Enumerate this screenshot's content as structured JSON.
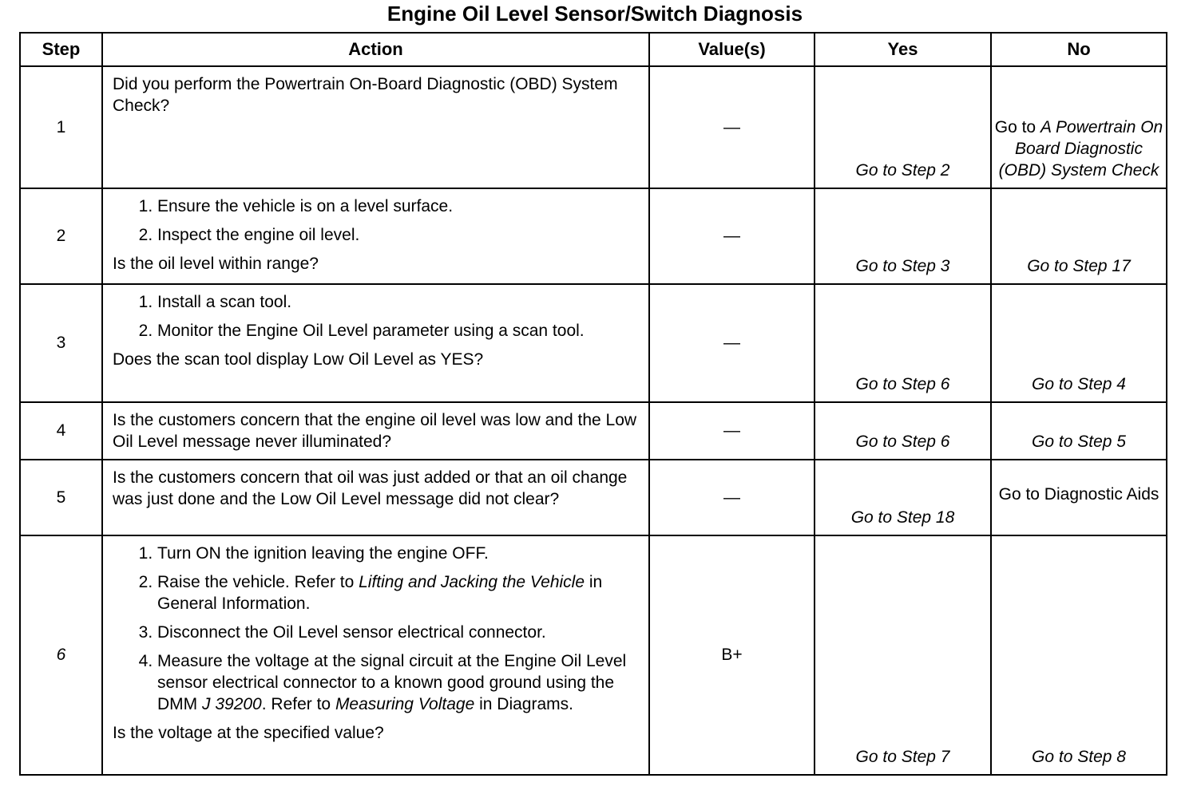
{
  "title": "Engine Oil Level Sensor/Switch Diagnosis",
  "headers": [
    "Step",
    "Action",
    "Value(s)",
    "Yes",
    "No"
  ],
  "rows": [
    {
      "step": "1",
      "step_italic": false,
      "intro": [
        [
          {
            "t": "Did you perform the Powertrain On-Board Diagnostic (OBD) System Check?"
          }
        ]
      ],
      "items": [],
      "question": [],
      "value": "—",
      "yes": "Go to Step 2",
      "no": [
        {
          "t": "Go to ",
          "i": false
        },
        {
          "t": "A Powertrain On Board Diagnostic (OBD) System Check",
          "i": true
        }
      ],
      "no_valign": "bottom"
    },
    {
      "step": "2",
      "step_italic": false,
      "intro": [],
      "items": [
        [
          {
            "t": "Ensure the vehicle is on a level surface."
          }
        ],
        [
          {
            "t": "Inspect the engine oil level."
          }
        ]
      ],
      "question": [
        {
          "t": "Is the oil level within range?"
        }
      ],
      "value": "—",
      "yes": "Go to Step 3",
      "no": [
        {
          "t": "Go to Step 17",
          "i": true
        }
      ],
      "no_valign": "bottom"
    },
    {
      "step": "3",
      "step_italic": false,
      "intro": [],
      "items": [
        [
          {
            "t": "Install a scan tool."
          }
        ],
        [
          {
            "t": "Monitor the Engine Oil Level parameter using a scan tool."
          }
        ]
      ],
      "question": [
        {
          "t": "Does the scan tool display Low Oil Level as YES?"
        }
      ],
      "value": "—",
      "yes": "Go to Step 6",
      "no": [
        {
          "t": "Go to Step 4",
          "i": true
        }
      ],
      "no_valign": "bottom"
    },
    {
      "step": "4",
      "step_italic": false,
      "intro": [
        [
          {
            "t": "Is the customers concern that the engine oil level was low and the Low Oil Level message never illuminated?"
          }
        ]
      ],
      "items": [],
      "question": [],
      "value": "—",
      "yes": "Go to Step 6",
      "no": [
        {
          "t": "Go to Step 5",
          "i": true
        }
      ],
      "no_valign": "bottom"
    },
    {
      "step": "5",
      "step_italic": false,
      "intro": [
        [
          {
            "t": "Is the customers concern that oil was just added or that an oil change was just done and the Low Oil Level message did not clear?"
          }
        ]
      ],
      "items": [],
      "question": [],
      "value": "—",
      "yes": "Go to Step 18",
      "no": [
        {
          "t": "Go to Diagnostic Aids",
          "i": false
        }
      ],
      "no_valign": "middle"
    },
    {
      "step": "6",
      "step_italic": true,
      "intro": [],
      "items": [
        [
          {
            "t": "Turn ON the ignition leaving the engine OFF."
          }
        ],
        [
          {
            "t": "Raise the vehicle. Refer to "
          },
          {
            "t": "Lifting and Jacking the Vehicle",
            "i": true
          },
          {
            "t": " in General Information."
          }
        ],
        [
          {
            "t": "Disconnect the Oil Level sensor electrical connector."
          }
        ],
        [
          {
            "t": "Measure the voltage at the signal circuit at the Engine Oil Level sensor electrical connector to a known good ground using the DMM "
          },
          {
            "t": "J 39200",
            "i": true
          },
          {
            "t": ". Refer to "
          },
          {
            "t": "Measuring Voltage",
            "i": true
          },
          {
            "t": " in Diagrams."
          }
        ]
      ],
      "question": [
        {
          "t": "Is the voltage at the specified value?"
        }
      ],
      "value": "B+",
      "yes": "Go to Step 7",
      "no": [
        {
          "t": "Go to Step 8",
          "i": true
        }
      ],
      "no_valign": "bottom"
    }
  ]
}
